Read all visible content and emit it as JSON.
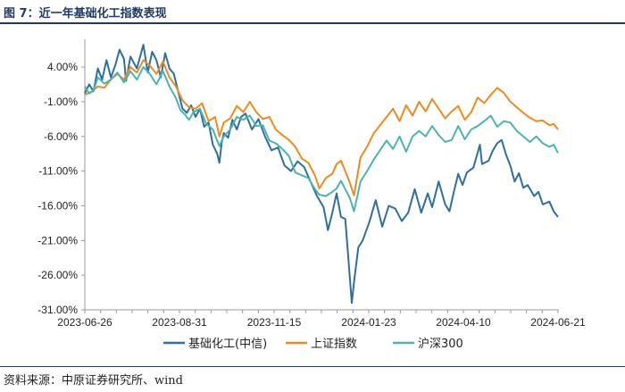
{
  "title": "图 7：近一年基础化工指数表现",
  "source": "资料来源：中原证券研究所、wind",
  "chart_data": {
    "type": "line",
    "xlabel": "",
    "ylabel": "",
    "x_ticks": [
      "2023-06-26",
      "2023-08-31",
      "2023-11-15",
      "2024-01-23",
      "2024-04-10",
      "2024-06-21"
    ],
    "y_ticks": [
      "4.00%",
      "-1.00%",
      "-6.00%",
      "-11.00%",
      "-16.00%",
      "-21.00%",
      "-26.00%",
      "-31.00%"
    ],
    "ylim": [
      -31,
      8
    ],
    "grid": false,
    "legend_position": "bottom",
    "series": [
      {
        "name": "基础化工(中信)",
        "color": "#2e6f9e",
        "points": [
          [
            0,
            0.2
          ],
          [
            2,
            1.5
          ],
          [
            4,
            0.5
          ],
          [
            6,
            3.8
          ],
          [
            8,
            2.2
          ],
          [
            10,
            5.0
          ],
          [
            12,
            2.5
          ],
          [
            14,
            4.2
          ],
          [
            16,
            6.5
          ],
          [
            18,
            5.2
          ],
          [
            19,
            2.0
          ],
          [
            21,
            5.5
          ],
          [
            24,
            3.8
          ],
          [
            27,
            7.2
          ],
          [
            29,
            3.2
          ],
          [
            31,
            6.2
          ],
          [
            33,
            5.0
          ],
          [
            35,
            2.5
          ],
          [
            37,
            6.0
          ],
          [
            39,
            3.8
          ],
          [
            41,
            3.0
          ],
          [
            43,
            0.5
          ],
          [
            45,
            -2.0
          ],
          [
            47,
            -2.6
          ],
          [
            49,
            -1.5
          ],
          [
            51,
            -3.2
          ],
          [
            53,
            -2.0
          ],
          [
            55,
            -4.6
          ],
          [
            57,
            -4.0
          ],
          [
            59,
            -7.2
          ],
          [
            61,
            -8.5
          ],
          [
            62,
            -9.8
          ],
          [
            63,
            -7.0
          ],
          [
            64,
            -5.5
          ],
          [
            66,
            -6.2
          ],
          [
            68,
            -3.6
          ],
          [
            70,
            -5.0
          ],
          [
            72,
            -3.2
          ],
          [
            74,
            -2.7
          ],
          [
            77,
            -5.0
          ],
          [
            80,
            -3.5
          ],
          [
            83,
            -6.0
          ],
          [
            86,
            -8.0
          ],
          [
            89,
            -7.6
          ],
          [
            92,
            -10.2
          ],
          [
            95,
            -11.0
          ],
          [
            98,
            -9.6
          ],
          [
            101,
            -10.4
          ],
          [
            104,
            -12.5
          ],
          [
            107,
            -14.6
          ],
          [
            110,
            -16.2
          ],
          [
            112,
            -19.5
          ],
          [
            114,
            -17.0
          ],
          [
            116,
            -14.2
          ],
          [
            118,
            -17.6
          ],
          [
            120,
            -17.9
          ],
          [
            121,
            -22.0
          ],
          [
            122,
            -26.0
          ],
          [
            123,
            -30.0
          ],
          [
            124,
            -27.0
          ],
          [
            126,
            -22.0
          ],
          [
            128,
            -21.0
          ],
          [
            131,
            -18.4
          ],
          [
            134,
            -15.2
          ],
          [
            137,
            -19.0
          ],
          [
            140,
            -16.0
          ],
          [
            143,
            -16.4
          ],
          [
            146,
            -18.2
          ],
          [
            149,
            -17.0
          ],
          [
            152,
            -13.6
          ],
          [
            155,
            -17.0
          ],
          [
            158,
            -14.2
          ],
          [
            160,
            -16.2
          ],
          [
            163,
            -12.5
          ],
          [
            166,
            -15.8
          ],
          [
            168,
            -16.8
          ],
          [
            170,
            -14.0
          ],
          [
            172,
            -11.4
          ],
          [
            174,
            -13.0
          ],
          [
            176,
            -11.2
          ],
          [
            179,
            -10.5
          ],
          [
            182,
            -7.2
          ],
          [
            183,
            -10.0
          ],
          [
            186,
            -9.5
          ],
          [
            188,
            -8.0
          ],
          [
            190,
            -7.0
          ],
          [
            192,
            -6.5
          ],
          [
            194,
            -8.6
          ],
          [
            196,
            -10.2
          ],
          [
            198,
            -12.5
          ],
          [
            200,
            -11.3
          ],
          [
            202,
            -13.4
          ],
          [
            204,
            -13.0
          ],
          [
            207,
            -14.6
          ],
          [
            209,
            -14.0
          ],
          [
            211,
            -15.8
          ],
          [
            214,
            -15.4
          ],
          [
            216,
            -16.8
          ],
          [
            218,
            -17.6
          ]
        ]
      },
      {
        "name": "上证指数",
        "color": "#ef8a1f",
        "points": [
          [
            0,
            0.0
          ],
          [
            3,
            0.4
          ],
          [
            6,
            1.2
          ],
          [
            9,
            1.0
          ],
          [
            12,
            2.2
          ],
          [
            15,
            3.0
          ],
          [
            18,
            2.2
          ],
          [
            21,
            4.0
          ],
          [
            24,
            3.2
          ],
          [
            27,
            5.0
          ],
          [
            30,
            4.2
          ],
          [
            33,
            3.0
          ],
          [
            36,
            4.8
          ],
          [
            39,
            2.5
          ],
          [
            42,
            1.2
          ],
          [
            45,
            -0.8
          ],
          [
            48,
            -1.8
          ],
          [
            51,
            -2.0
          ],
          [
            54,
            -1.2
          ],
          [
            57,
            -3.8
          ],
          [
            60,
            -3.2
          ],
          [
            62,
            -6.0
          ],
          [
            64,
            -4.0
          ],
          [
            67,
            -3.4
          ],
          [
            70,
            -1.6
          ],
          [
            73,
            -2.5
          ],
          [
            76,
            -1.0
          ],
          [
            79,
            -2.5
          ],
          [
            82,
            -3.5
          ],
          [
            85,
            -3.2
          ],
          [
            88,
            -5.0
          ],
          [
            91,
            -5.8
          ],
          [
            94,
            -6.5
          ],
          [
            97,
            -7.5
          ],
          [
            100,
            -9.2
          ],
          [
            103,
            -9.8
          ],
          [
            106,
            -11.6
          ],
          [
            108,
            -13.5
          ],
          [
            111,
            -12.0
          ],
          [
            114,
            -11.4
          ],
          [
            116,
            -10.0
          ],
          [
            118,
            -9.5
          ],
          [
            120,
            -11.0
          ],
          [
            122,
            -12.6
          ],
          [
            124,
            -14.5
          ],
          [
            127,
            -9.0
          ],
          [
            130,
            -7.5
          ],
          [
            133,
            -5.6
          ],
          [
            136,
            -4.4
          ],
          [
            139,
            -3.2
          ],
          [
            142,
            -2.0
          ],
          [
            145,
            -3.8
          ],
          [
            148,
            -1.5
          ],
          [
            151,
            -3.0
          ],
          [
            154,
            -1.0
          ],
          [
            157,
            -2.4
          ],
          [
            160,
            -0.6
          ],
          [
            163,
            -2.0
          ],
          [
            166,
            -3.4
          ],
          [
            169,
            -2.4
          ],
          [
            172,
            -1.6
          ],
          [
            175,
            -3.6
          ],
          [
            178,
            -2.5
          ],
          [
            181,
            -0.4
          ],
          [
            184,
            -1.2
          ],
          [
            187,
            0.0
          ],
          [
            190,
            1.0
          ],
          [
            193,
            0.3
          ],
          [
            196,
            -1.0
          ],
          [
            199,
            -1.8
          ],
          [
            202,
            -2.6
          ],
          [
            205,
            -3.3
          ],
          [
            208,
            -3.8
          ],
          [
            211,
            -3.7
          ],
          [
            214,
            -4.4
          ],
          [
            216,
            -4.2
          ],
          [
            218,
            -5.0
          ]
        ]
      },
      {
        "name": "沪深300",
        "color": "#4bb3b3",
        "points": [
          [
            0,
            1.2
          ],
          [
            2,
            0.2
          ],
          [
            4,
            0.6
          ],
          [
            6,
            2.5
          ],
          [
            9,
            1.6
          ],
          [
            12,
            2.2
          ],
          [
            15,
            3.2
          ],
          [
            18,
            1.8
          ],
          [
            21,
            3.4
          ],
          [
            24,
            2.2
          ],
          [
            27,
            4.0
          ],
          [
            30,
            3.0
          ],
          [
            33,
            1.5
          ],
          [
            36,
            3.4
          ],
          [
            39,
            1.2
          ],
          [
            42,
            -0.5
          ],
          [
            44,
            -2.2
          ],
          [
            46,
            -2.8
          ],
          [
            48,
            -3.6
          ],
          [
            50,
            -2.5
          ],
          [
            53,
            -2.0
          ],
          [
            56,
            -4.2
          ],
          [
            59,
            -5.0
          ],
          [
            62,
            -7.4
          ],
          [
            64,
            -6.0
          ],
          [
            67,
            -5.0
          ],
          [
            70,
            -3.2
          ],
          [
            73,
            -3.6
          ],
          [
            76,
            -3.0
          ],
          [
            79,
            -4.5
          ],
          [
            82,
            -4.4
          ],
          [
            85,
            -6.6
          ],
          [
            88,
            -7.0
          ],
          [
            91,
            -7.8
          ],
          [
            94,
            -8.8
          ],
          [
            97,
            -11.2
          ],
          [
            100,
            -11.6
          ],
          [
            103,
            -12.0
          ],
          [
            106,
            -13.6
          ],
          [
            108,
            -14.4
          ],
          [
            111,
            -14.6
          ],
          [
            114,
            -14.0
          ],
          [
            116,
            -13.5
          ],
          [
            118,
            -12.4
          ],
          [
            120,
            -13.6
          ],
          [
            122,
            -14.8
          ],
          [
            124,
            -16.8
          ],
          [
            127,
            -12.5
          ],
          [
            130,
            -11.0
          ],
          [
            133,
            -9.4
          ],
          [
            136,
            -8.0
          ],
          [
            139,
            -6.6
          ],
          [
            142,
            -7.8
          ],
          [
            145,
            -6.0
          ],
          [
            148,
            -8.2
          ],
          [
            151,
            -6.0
          ],
          [
            154,
            -5.2
          ],
          [
            157,
            -6.0
          ],
          [
            160,
            -4.5
          ],
          [
            163,
            -5.8
          ],
          [
            166,
            -6.8
          ],
          [
            169,
            -6.5
          ],
          [
            172,
            -4.5
          ],
          [
            175,
            -6.4
          ],
          [
            178,
            -5.0
          ],
          [
            181,
            -4.5
          ],
          [
            184,
            -3.8
          ],
          [
            187,
            -3.0
          ],
          [
            190,
            -4.6
          ],
          [
            193,
            -3.8
          ],
          [
            196,
            -4.0
          ],
          [
            199,
            -5.2
          ],
          [
            202,
            -6.0
          ],
          [
            205,
            -6.8
          ],
          [
            208,
            -6.0
          ],
          [
            211,
            -7.0
          ],
          [
            214,
            -7.5
          ],
          [
            216,
            -7.2
          ],
          [
            218,
            -8.4
          ]
        ]
      }
    ]
  }
}
